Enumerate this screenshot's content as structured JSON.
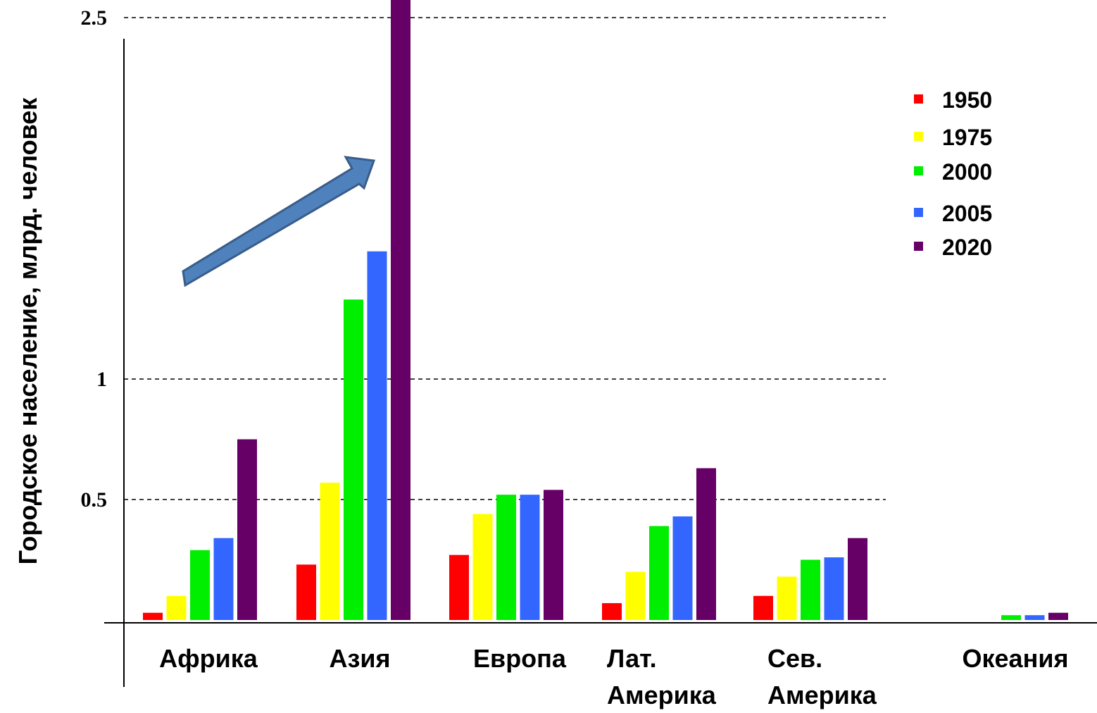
{
  "chart_data": {
    "type": "bar",
    "ylabel": "Городское население, млрд. человек",
    "xlabel": "",
    "title": "",
    "ylim": [
      0,
      2.85
    ],
    "y_ticks": [
      {
        "value": 0.5,
        "label": "0.5"
      },
      {
        "value": 1,
        "label": "1"
      },
      {
        "value": 2.5,
        "label": "2.5"
      }
    ],
    "grid": "dashed at labeled ticks",
    "legend_position": "top-right",
    "categories": [
      [
        "Африка"
      ],
      [
        "Азия"
      ],
      [
        "Европа"
      ],
      [
        "Лат.",
        "Америка"
      ],
      [
        "Сев.",
        "Америка"
      ],
      [
        "Океания"
      ]
    ],
    "series": [
      {
        "name": "1950",
        "color": "#ff0000",
        "values": [
          0.03,
          0.23,
          0.27,
          0.07,
          0.1,
          0.0
        ]
      },
      {
        "name": "1975",
        "color": "#ffff00",
        "values": [
          0.1,
          0.57,
          0.44,
          0.2,
          0.18,
          0.0
        ]
      },
      {
        "name": "2000",
        "color": "#00ee00",
        "values": [
          0.29,
          1.33,
          0.52,
          0.39,
          0.25,
          0.02
        ]
      },
      {
        "name": "2005",
        "color": "#3366ff",
        "values": [
          0.34,
          1.53,
          0.52,
          0.43,
          0.26,
          0.02
        ]
      },
      {
        "name": "2020",
        "color": "#660066",
        "values": [
          0.75,
          2.65,
          0.54,
          0.63,
          0.34,
          0.03
        ]
      }
    ],
    "annotation": {
      "type": "arrow",
      "color": "#4a7ebb",
      "meaning": "upward trend toward Asia 2020"
    }
  }
}
